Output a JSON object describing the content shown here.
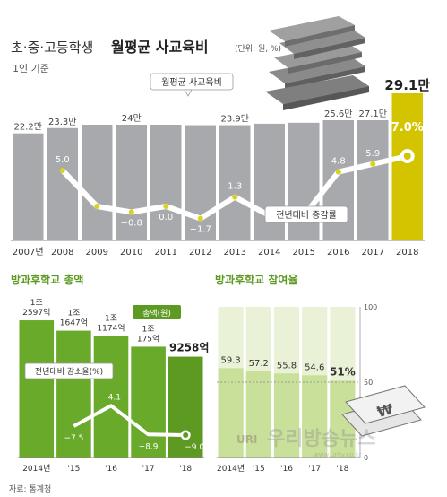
{
  "header": {
    "title_prefix": "초·중·고등학생",
    "title_main": "월평균 사교육비",
    "unit": "(단위: 원, %)",
    "subtitle": "1인 기준"
  },
  "source": "자료: 통계청",
  "watermark": {
    "text": "우리방송뉴스",
    "logo": "URI",
    "url": "www.uritv.co.kr"
  },
  "colors": {
    "bar_gray": "#a7a9ac",
    "bar_highlight": "#d4c400",
    "bar_green": "#6aaa2a",
    "bar_green_dark": "#5c9a22",
    "bar_light_green": "#c9e09a",
    "line_dot": "#d9d31a",
    "text_dark": "#333333"
  },
  "chart_data": [
    {
      "type": "bar",
      "title": "월평균 사교육비",
      "categories": [
        "2007년",
        "2008",
        "2009",
        "2010",
        "2011",
        "2012",
        "2013",
        "2014",
        "2015",
        "2016",
        "2017",
        "2018"
      ],
      "values": [
        22.2,
        23.3,
        24,
        24,
        24,
        23.9,
        23.9,
        24.2,
        24.4,
        25.6,
        27.1,
        29.1
      ],
      "value_labels": [
        "22.2만",
        "23.3만",
        "",
        "24만",
        "",
        "",
        "23.9만",
        "",
        "",
        "25.6만",
        "27.1만",
        "29.1만"
      ],
      "bar_label": "월평균 사교육비",
      "highlight_index": 11,
      "ylim": [
        0,
        32
      ],
      "overlay_line": {
        "name": "전년대비 증감률",
        "values": [
          null,
          5.0,
          0,
          -0.8,
          0.0,
          -1.7,
          1.3,
          -1.3,
          -1.3,
          4.8,
          5.9,
          7.0
        ],
        "labels": [
          "",
          "5.0",
          "",
          "−0.8",
          "0.0",
          "−1.7",
          "1.3",
          "",
          "",
          "4.8",
          "5.9",
          "7.0%"
        ],
        "ylim": [
          -4,
          10
        ]
      }
    },
    {
      "type": "bar",
      "title": "방과후학교 총액",
      "categories": [
        "2014년",
        "'15",
        "'16",
        "'17",
        "'18"
      ],
      "values": [
        12597,
        11647,
        11174,
        10175,
        9258
      ],
      "value_labels": [
        "1조\n2597억",
        "1조\n1647억",
        "1조\n1174억",
        "1조\n175억",
        "9258억"
      ],
      "bar_label": "총액(원)",
      "ylim": [
        0,
        14000
      ],
      "overlay_line": {
        "name": "전년대비 감소율(%)",
        "values": [
          null,
          -7.5,
          -4.1,
          -8.9,
          -9.0
        ],
        "labels": [
          "",
          "−7.5",
          "−4.1",
          "−8.9",
          "−9.0"
        ],
        "ylim": [
          -12,
          0
        ]
      }
    },
    {
      "type": "bar",
      "title": "방과후학교 참여율",
      "categories": [
        "2014년",
        "'15",
        "'16",
        "'17",
        "'18"
      ],
      "values": [
        59.3,
        57.2,
        55.8,
        54.6,
        51
      ],
      "value_labels": [
        "59.3",
        "57.2",
        "55.8",
        "54.6",
        "51%"
      ],
      "ylim": [
        0,
        100
      ],
      "y_ticks": [
        "100",
        "50",
        "0"
      ]
    }
  ]
}
